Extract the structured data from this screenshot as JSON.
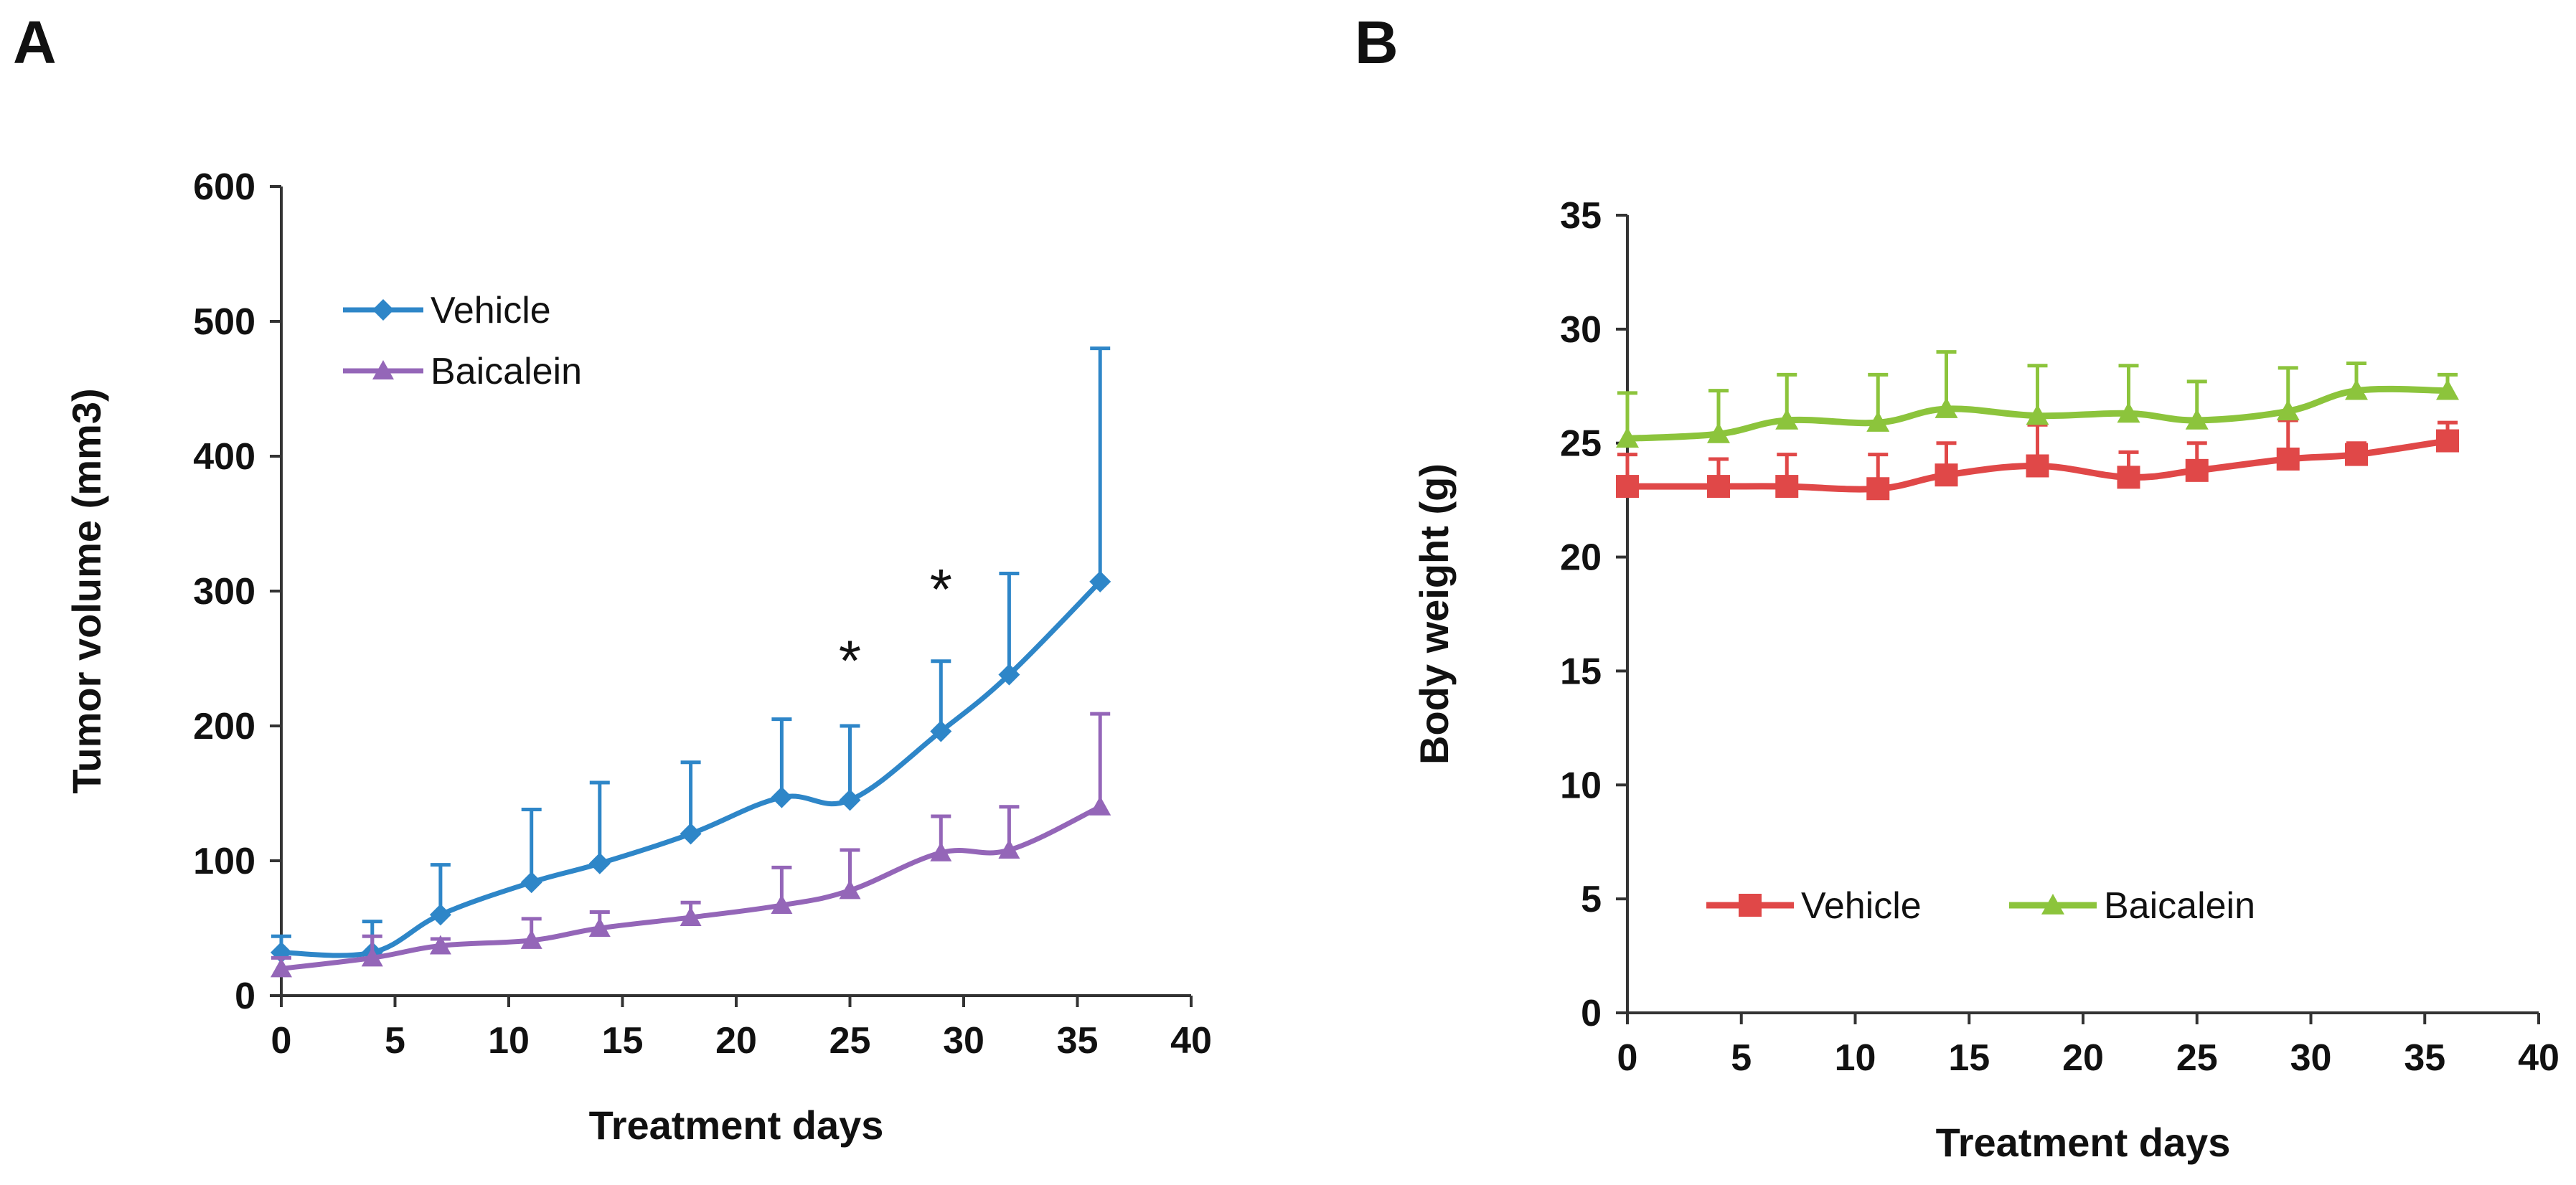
{
  "chart_data": [
    {
      "panel": "A",
      "type": "line",
      "title": "",
      "xlabel": "Treatment days",
      "ylabel": "Tumor volume (mm3)",
      "xlim": [
        0,
        40
      ],
      "ylim": [
        0,
        600
      ],
      "xticks": [
        0,
        5,
        10,
        15,
        20,
        25,
        30,
        35,
        40
      ],
      "yticks": [
        0,
        100,
        200,
        300,
        400,
        500,
        600
      ],
      "grid": false,
      "legend_position": "top-left",
      "x": [
        0,
        4,
        7,
        11,
        14,
        18,
        22,
        25,
        29,
        32,
        36
      ],
      "series": [
        {
          "name": "Vehicle",
          "color": "#2E86C8",
          "marker": "diamond",
          "values": [
            32,
            32,
            60,
            84,
            98,
            120,
            147,
            145,
            196,
            238,
            307
          ],
          "error_upper": [
            44,
            55,
            97,
            138,
            158,
            173,
            205,
            200,
            248,
            313,
            480
          ]
        },
        {
          "name": "Baicalein",
          "color": "#9466B8",
          "marker": "triangle",
          "values": [
            20,
            28,
            37,
            41,
            50,
            58,
            67,
            78,
            106,
            108,
            140
          ],
          "error_upper": [
            28,
            44,
            42,
            57,
            62,
            69,
            95,
            108,
            133,
            140,
            209
          ]
        }
      ],
      "annotations": [
        {
          "text": "*",
          "x": 25,
          "y": 255
        },
        {
          "text": "*",
          "x": 29,
          "y": 308
        }
      ]
    },
    {
      "panel": "B",
      "type": "line",
      "title": "",
      "xlabel": "Treatment days",
      "ylabel": "Body weight (g)",
      "xlim": [
        0,
        40
      ],
      "ylim": [
        0,
        35
      ],
      "xticks": [
        0,
        5,
        10,
        15,
        20,
        25,
        30,
        35,
        40
      ],
      "yticks": [
        0,
        5,
        10,
        15,
        20,
        25,
        30,
        35
      ],
      "grid": false,
      "legend_position": "bottom-left",
      "x": [
        0,
        4,
        7,
        11,
        14,
        18,
        22,
        25,
        29,
        32,
        36
      ],
      "series": [
        {
          "name": "Vehicle",
          "color": "#E04848",
          "marker": "square",
          "values": [
            23.1,
            23.1,
            23.1,
            23.0,
            23.6,
            24.0,
            23.5,
            23.8,
            24.3,
            24.5,
            25.1
          ],
          "error_upper": [
            24.5,
            24.3,
            24.5,
            24.5,
            25.0,
            25.8,
            24.6,
            25.0,
            26.0,
            25.0,
            25.9
          ]
        },
        {
          "name": "Baicalein",
          "color": "#8CC43C",
          "marker": "triangle",
          "values": [
            25.2,
            25.4,
            26.0,
            25.9,
            26.5,
            26.2,
            26.3,
            26.0,
            26.4,
            27.3,
            27.3
          ],
          "error_upper": [
            27.2,
            27.3,
            28.0,
            28.0,
            29.0,
            28.4,
            28.4,
            27.7,
            28.3,
            28.5,
            28.0
          ]
        }
      ],
      "annotations": []
    }
  ]
}
